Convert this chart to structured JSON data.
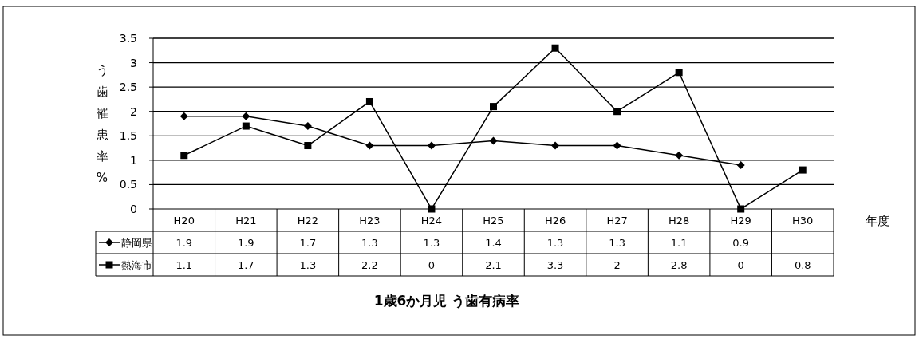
{
  "chart_data": {
    "type": "line",
    "title": "1歳6か月児 う歯有病率",
    "ylabel": "う歯罹患率%",
    "xlabel": "年度",
    "categories": [
      "H20",
      "H21",
      "H22",
      "H23",
      "H24",
      "H25",
      "H26",
      "H27",
      "H28",
      "H29",
      "H30"
    ],
    "series": [
      {
        "name": "静岡県",
        "color": "#000000",
        "marker": "diamond",
        "values": [
          1.9,
          1.9,
          1.7,
          1.3,
          1.3,
          1.4,
          1.3,
          1.3,
          1.1,
          0.9,
          null
        ]
      },
      {
        "name": "熱海市",
        "color": "#000000",
        "marker": "square",
        "values": [
          1.1,
          1.7,
          1.3,
          2.2,
          0,
          2.1,
          3.3,
          2,
          2.8,
          0,
          0.8
        ]
      }
    ],
    "ylim": [
      0,
      3.5
    ],
    "yticks": [
      0,
      0.5,
      1,
      1.5,
      2,
      2.5,
      3,
      3.5
    ],
    "grid": "y",
    "legend": "bottom left",
    "data_labels": true,
    "line_style": "solid"
  }
}
